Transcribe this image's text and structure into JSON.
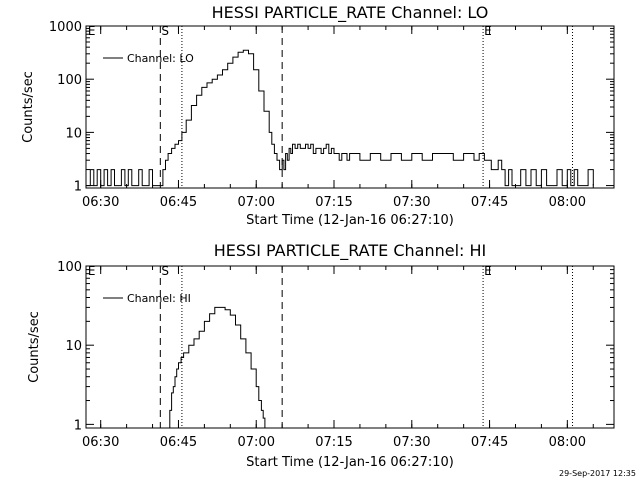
{
  "footer": {
    "timestamp": "29-Sep-2017 12:35"
  },
  "chart_data": [
    {
      "type": "line",
      "title": "HESSI PARTICLE_RATE Channel: LO",
      "xlabel": "Start Time (12-Jan-16 06:27:10)",
      "ylabel": "Counts/sec",
      "yscale": "log",
      "xlim": [
        "06:27:10",
        "08:09:00"
      ],
      "ylim": [
        0.9,
        1000
      ],
      "xticks": [
        "06:30",
        "06:45",
        "07:00",
        "07:15",
        "07:30",
        "07:45",
        "08:00"
      ],
      "yticks": [
        "1",
        "10",
        "100",
        "1000"
      ],
      "legend": {
        "placement": "top-left"
      },
      "markers": {
        "dashed": [
          "06:41:30",
          "07:05:00"
        ],
        "dotted": [
          "06:45:40",
          "07:43:45",
          "08:01:00"
        ],
        "labels": [
          {
            "text": "E",
            "x": "06:27:20"
          },
          {
            "text": "S",
            "x": "06:41:30"
          },
          {
            "text": "E",
            "x": "07:43:45"
          }
        ]
      },
      "series": [
        {
          "name": "Channel: LO",
          "x": [
            "06:27:10",
            "06:28:00",
            "06:28:40",
            "06:29:20",
            "06:30:00",
            "06:30:40",
            "06:31:20",
            "06:32:00",
            "06:32:40",
            "06:33:20",
            "06:34:00",
            "06:34:40",
            "06:35:20",
            "06:36:00",
            "06:36:40",
            "06:37:20",
            "06:38:00",
            "06:38:40",
            "06:39:20",
            "06:40:00",
            "06:40:40",
            "06:41:20",
            "06:41:40",
            "06:42:00",
            "06:42:30",
            "06:43:00",
            "06:43:40",
            "06:44:20",
            "06:45:00",
            "06:45:40",
            "06:46:30",
            "06:47:30",
            "06:48:30",
            "06:49:30",
            "06:50:30",
            "06:51:30",
            "06:52:30",
            "06:53:30",
            "06:54:30",
            "06:55:30",
            "06:56:30",
            "06:57:30",
            "06:58:30",
            "06:59:30",
            "07:00:30",
            "07:01:30",
            "07:02:30",
            "07:03:00",
            "07:03:30",
            "07:04:00",
            "07:04:30",
            "07:05:00",
            "07:05:20",
            "07:05:40",
            "07:06:00",
            "07:06:20",
            "07:06:40",
            "07:07:00",
            "07:07:30",
            "07:08:00",
            "07:08:30",
            "07:09:00",
            "07:09:30",
            "07:10:00",
            "07:10:30",
            "07:11:00",
            "07:11:30",
            "07:12:00",
            "07:12:30",
            "07:13:00",
            "07:13:30",
            "07:14:00",
            "07:14:30",
            "07:15:00",
            "07:15:30",
            "07:16:00",
            "07:16:30",
            "07:17:00",
            "07:17:30",
            "07:18:00",
            "07:20:00",
            "07:22:00",
            "07:24:00",
            "07:26:00",
            "07:28:00",
            "07:30:00",
            "07:32:00",
            "07:34:00",
            "07:36:00",
            "07:38:00",
            "07:40:00",
            "07:41:00",
            "07:42:00",
            "07:43:00",
            "07:44:00",
            "07:44:40",
            "07:45:20",
            "07:46:00",
            "07:46:40",
            "07:47:20",
            "07:48:00",
            "07:48:40",
            "07:49:20",
            "07:50:00",
            "07:51:00",
            "07:52:00",
            "07:53:00",
            "07:54:00",
            "07:55:00",
            "07:56:00",
            "07:57:00",
            "07:58:00",
            "07:59:00",
            "08:00:00",
            "08:00:40",
            "08:01:20",
            "08:02:00",
            "08:03:00",
            "08:04:00",
            "08:05:00"
          ],
          "values": [
            1,
            2,
            1,
            2,
            1,
            2,
            1,
            2,
            1,
            1,
            2,
            1,
            2,
            1,
            1,
            2,
            1,
            1,
            2,
            1,
            1,
            1,
            1,
            2,
            3,
            4,
            5,
            6,
            7,
            10,
            17,
            32,
            50,
            70,
            85,
            100,
            120,
            150,
            200,
            260,
            320,
            350,
            300,
            150,
            60,
            25,
            10,
            6,
            4,
            3,
            2,
            3,
            2,
            4,
            3,
            5,
            4,
            6,
            5,
            6,
            5,
            5,
            6,
            5,
            6,
            4,
            5,
            5,
            4,
            5,
            6,
            4,
            5,
            4,
            4,
            3,
            4,
            4,
            3,
            4,
            3,
            4,
            3,
            4,
            3,
            4,
            3,
            4,
            4,
            3,
            4,
            4,
            3,
            4,
            3,
            3,
            2,
            2,
            3,
            2,
            1,
            2,
            1,
            1,
            2,
            1,
            2,
            1,
            2,
            1,
            1,
            2,
            1,
            2,
            1,
            2,
            1,
            1,
            2,
            1
          ]
        }
      ]
    },
    {
      "type": "line",
      "title": "HESSI PARTICLE_RATE Channel: HI",
      "xlabel": "Start Time (12-Jan-16 06:27:10)",
      "ylabel": "Counts/sec",
      "yscale": "log",
      "xlim": [
        "06:27:10",
        "08:09:00"
      ],
      "ylim": [
        0.9,
        100
      ],
      "xticks": [
        "06:30",
        "06:45",
        "07:00",
        "07:15",
        "07:30",
        "07:45",
        "08:00"
      ],
      "yticks": [
        "1",
        "10",
        "100"
      ],
      "legend": {
        "placement": "top-left"
      },
      "markers": {
        "dashed": [
          "06:41:30",
          "07:05:00"
        ],
        "dotted": [
          "06:45:40",
          "07:43:45",
          "08:01:00"
        ],
        "labels": [
          {
            "text": "E",
            "x": "06:27:20"
          },
          {
            "text": "S",
            "x": "06:41:30"
          },
          {
            "text": "E",
            "x": "07:43:45"
          }
        ]
      },
      "series": [
        {
          "name": "Channel: HI",
          "x": [
            "06:43:00",
            "06:43:20",
            "06:43:40",
            "06:44:00",
            "06:44:20",
            "06:44:40",
            "06:45:00",
            "06:45:30",
            "06:46:00",
            "06:47:00",
            "06:48:00",
            "06:49:00",
            "06:50:00",
            "06:51:00",
            "06:52:00",
            "06:53:00",
            "06:54:00",
            "06:55:00",
            "06:56:00",
            "06:57:00",
            "06:58:00",
            "06:59:00",
            "07:00:00",
            "07:00:30",
            "07:01:00",
            "07:01:20",
            "07:01:40"
          ],
          "values": [
            0.9,
            1.5,
            2.5,
            3,
            4,
            5,
            6,
            7,
            8,
            10,
            12,
            15,
            20,
            25,
            30,
            30,
            28,
            24,
            18,
            12,
            8,
            5,
            3,
            2,
            1.5,
            1.2,
            0.9
          ]
        }
      ]
    }
  ]
}
